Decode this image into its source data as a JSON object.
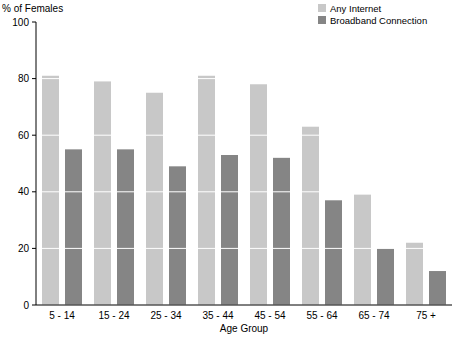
{
  "chart_data": {
    "type": "bar",
    "y_label": "% of Females",
    "x_label": "Age Group",
    "categories": [
      "5 - 14",
      "15 - 24",
      "25 - 34",
      "35 - 44",
      "45 - 54",
      "55 - 64",
      "65 - 74",
      "75 +"
    ],
    "series": [
      {
        "name": "Any Internet",
        "color": "#c8c8c8",
        "values": [
          81,
          79,
          75,
          81,
          78,
          63,
          39,
          22
        ]
      },
      {
        "name": "Broadband Connection",
        "color": "#858585",
        "values": [
          55,
          55,
          49,
          53,
          52,
          37,
          20,
          12
        ]
      }
    ],
    "ylim": [
      0,
      100
    ],
    "yticks": [
      0,
      20,
      40,
      60,
      80,
      100
    ],
    "grid": true,
    "legend": "top-right"
  }
}
